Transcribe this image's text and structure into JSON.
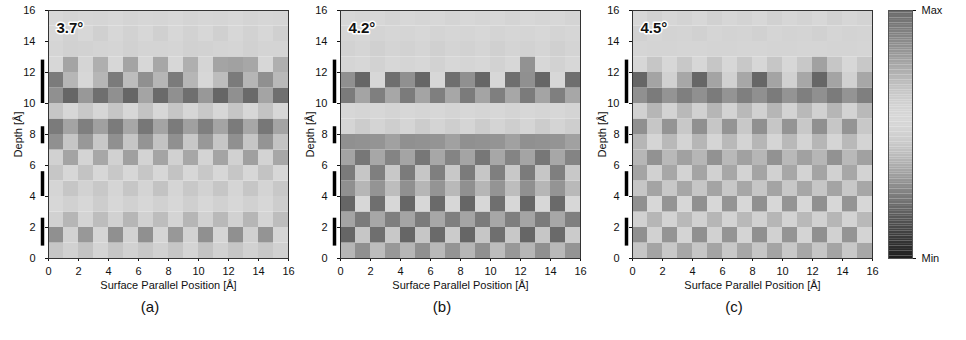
{
  "chart_data": {
    "type": "heatmap",
    "x_label": "Surface Parallel Position [Å]",
    "y_label": "Depth [Å]",
    "xlim": [
      0,
      16
    ],
    "ylim": [
      0,
      16
    ],
    "xticks": [
      0,
      2,
      4,
      6,
      8,
      10,
      12,
      14,
      16
    ],
    "yticks": [
      0,
      2,
      4,
      6,
      8,
      10,
      12,
      14,
      16
    ],
    "x_bins": [
      0,
      1,
      2,
      3,
      4,
      5,
      6,
      7,
      8,
      9,
      10,
      11,
      12,
      13,
      14,
      15,
      16
    ],
    "y_bins": [
      0,
      1,
      2,
      3,
      4,
      5,
      6,
      7,
      8,
      9,
      10,
      11,
      12,
      13,
      14,
      15,
      16
    ],
    "layer_bars": [
      [
        0.8,
        2.6
      ],
      [
        4.0,
        5.6
      ],
      [
        7.4,
        8.5
      ],
      [
        10.0,
        12.8
      ]
    ],
    "colorbar": {
      "range": [
        0,
        1
      ],
      "ticks": [
        {
          "value": 1,
          "label": "Max"
        },
        {
          "value": 0,
          "label": "Min"
        }
      ]
    },
    "panels": [
      {
        "title": "3.7°",
        "panel_label": "(a)",
        "cells": [
          [
            0.45,
            0.5,
            0.44,
            0.52,
            0.45,
            0.5,
            0.46,
            0.5,
            0.45,
            0.52,
            0.44,
            0.5,
            0.45,
            0.5,
            0.46,
            0.5
          ],
          [
            0.3,
            0.62,
            0.32,
            0.6,
            0.3,
            0.62,
            0.3,
            0.6,
            0.32,
            0.62,
            0.3,
            0.6,
            0.3,
            0.63,
            0.31,
            0.6
          ],
          [
            0.5,
            0.4,
            0.52,
            0.42,
            0.5,
            0.4,
            0.5,
            0.42,
            0.52,
            0.4,
            0.5,
            0.41,
            0.5,
            0.4,
            0.52,
            0.42
          ],
          [
            0.55,
            0.5,
            0.56,
            0.48,
            0.55,
            0.5,
            0.57,
            0.5,
            0.55,
            0.49,
            0.56,
            0.5,
            0.55,
            0.5,
            0.56,
            0.48
          ],
          [
            0.6,
            0.45,
            0.62,
            0.46,
            0.6,
            0.45,
            0.61,
            0.44,
            0.6,
            0.46,
            0.62,
            0.45,
            0.6,
            0.45,
            0.61,
            0.46
          ],
          [
            0.45,
            0.55,
            0.44,
            0.56,
            0.46,
            0.55,
            0.45,
            0.57,
            0.44,
            0.55,
            0.46,
            0.56,
            0.45,
            0.55,
            0.44,
            0.56
          ],
          [
            0.5,
            0.35,
            0.52,
            0.36,
            0.5,
            0.34,
            0.51,
            0.35,
            0.5,
            0.36,
            0.52,
            0.35,
            0.5,
            0.34,
            0.51,
            0.36
          ],
          [
            0.3,
            0.45,
            0.32,
            0.46,
            0.3,
            0.45,
            0.31,
            0.44,
            0.3,
            0.46,
            0.32,
            0.45,
            0.3,
            0.45,
            0.31,
            0.44
          ],
          [
            0.25,
            0.35,
            0.26,
            0.34,
            0.25,
            0.36,
            0.24,
            0.35,
            0.25,
            0.34,
            0.26,
            0.35,
            0.25,
            0.36,
            0.24,
            0.35
          ],
          [
            0.45,
            0.55,
            0.46,
            0.54,
            0.45,
            0.56,
            0.44,
            0.55,
            0.45,
            0.54,
            0.46,
            0.55,
            0.45,
            0.56,
            0.44,
            0.55
          ],
          [
            0.3,
            0.2,
            0.32,
            0.22,
            0.3,
            0.2,
            0.35,
            0.21,
            0.3,
            0.22,
            0.32,
            0.2,
            0.3,
            0.21,
            0.35,
            0.22
          ],
          [
            0.25,
            0.4,
            0.55,
            0.4,
            0.25,
            0.42,
            0.3,
            0.4,
            0.25,
            0.4,
            0.55,
            0.42,
            0.25,
            0.4,
            0.3,
            0.41
          ],
          [
            0.55,
            0.35,
            0.6,
            0.38,
            0.55,
            0.35,
            0.58,
            0.36,
            0.55,
            0.38,
            0.6,
            0.35,
            0.8,
            0.36,
            0.58,
            0.38
          ],
          [
            0.6,
            0.5,
            0.62,
            0.52,
            0.6,
            0.5,
            0.61,
            0.52,
            0.6,
            0.5,
            0.62,
            0.52,
            0.6,
            0.5,
            0.61,
            0.52
          ],
          [
            0.55,
            0.62,
            0.56,
            0.63,
            0.55,
            0.62,
            0.56,
            0.63,
            0.55,
            0.62,
            0.56,
            0.63,
            0.55,
            0.62,
            0.56,
            0.63
          ],
          [
            0.58,
            0.52,
            0.59,
            0.53,
            0.58,
            0.52,
            0.59,
            0.53,
            0.58,
            0.52,
            0.59,
            0.53,
            0.58,
            0.52,
            0.59,
            0.53
          ]
        ]
      },
      {
        "title": "4.2°",
        "panel_label": "(b)",
        "cells": [
          [
            0.4,
            0.3,
            0.42,
            0.32,
            0.4,
            0.3,
            0.41,
            0.31,
            0.4,
            0.3,
            0.42,
            0.32,
            0.4,
            0.3,
            0.41,
            0.31
          ],
          [
            0.2,
            0.45,
            0.22,
            0.46,
            0.2,
            0.45,
            0.21,
            0.47,
            0.2,
            0.45,
            0.22,
            0.46,
            0.2,
            0.45,
            0.21,
            0.47
          ],
          [
            0.35,
            0.25,
            0.36,
            0.26,
            0.35,
            0.25,
            0.36,
            0.26,
            0.35,
            0.25,
            0.36,
            0.26,
            0.35,
            0.25,
            0.36,
            0.26
          ],
          [
            0.2,
            0.55,
            0.22,
            0.56,
            0.2,
            0.55,
            0.21,
            0.56,
            0.2,
            0.55,
            0.22,
            0.56,
            0.2,
            0.55,
            0.21,
            0.56
          ],
          [
            0.3,
            0.4,
            0.31,
            0.42,
            0.3,
            0.4,
            0.31,
            0.41,
            0.3,
            0.4,
            0.31,
            0.42,
            0.3,
            0.4,
            0.31,
            0.41
          ],
          [
            0.25,
            0.45,
            0.26,
            0.46,
            0.25,
            0.45,
            0.26,
            0.46,
            0.25,
            0.45,
            0.26,
            0.46,
            0.25,
            0.45,
            0.26,
            0.46
          ],
          [
            0.35,
            0.95,
            0.36,
            0.9,
            0.35,
            0.95,
            0.36,
            0.9,
            0.35,
            0.95,
            0.36,
            0.9,
            0.35,
            0.95,
            0.36,
            0.9
          ],
          [
            0.3,
            0.85,
            0.31,
            0.8,
            0.3,
            0.85,
            0.31,
            0.8,
            0.3,
            0.85,
            0.31,
            0.8,
            0.3,
            0.85,
            0.31,
            0.8
          ],
          [
            0.6,
            0.65,
            0.61,
            0.64,
            0.6,
            0.65,
            0.61,
            0.64,
            0.6,
            0.65,
            0.61,
            0.64,
            0.6,
            0.65,
            0.61,
            0.64
          ],
          [
            0.55,
            0.6,
            0.56,
            0.61,
            0.55,
            0.6,
            0.56,
            0.61,
            0.55,
            0.6,
            0.56,
            0.61,
            0.55,
            0.6,
            0.56,
            0.61
          ],
          [
            0.25,
            0.35,
            0.26,
            0.36,
            0.25,
            0.35,
            0.26,
            0.36,
            0.25,
            0.35,
            0.26,
            0.36,
            0.25,
            0.35,
            0.26,
            0.36
          ],
          [
            0.3,
            0.2,
            0.55,
            0.22,
            0.3,
            0.2,
            0.55,
            0.22,
            0.3,
            0.2,
            0.55,
            0.22,
            0.3,
            0.2,
            0.55,
            0.22
          ],
          [
            0.6,
            0.55,
            0.62,
            0.56,
            0.6,
            0.55,
            0.62,
            0.56,
            0.6,
            0.55,
            0.62,
            0.56,
            0.85,
            0.55,
            0.62,
            0.56
          ],
          [
            0.62,
            0.6,
            0.63,
            0.61,
            0.62,
            0.6,
            0.63,
            0.61,
            0.62,
            0.6,
            0.63,
            0.61,
            0.62,
            0.6,
            0.63,
            0.61
          ],
          [
            0.6,
            0.58,
            0.61,
            0.59,
            0.6,
            0.58,
            0.61,
            0.59,
            0.6,
            0.58,
            0.61,
            0.59,
            0.6,
            0.58,
            0.61,
            0.59
          ],
          [
            0.56,
            0.6,
            0.57,
            0.61,
            0.56,
            0.6,
            0.57,
            0.61,
            0.56,
            0.6,
            0.57,
            0.61,
            0.56,
            0.6,
            0.57,
            0.61
          ]
        ]
      },
      {
        "title": "4.5°",
        "panel_label": "(c)",
        "cells": [
          [
            0.45,
            0.35,
            0.46,
            0.36,
            0.45,
            0.35,
            0.46,
            0.36,
            0.45,
            0.35,
            0.46,
            0.36,
            0.45,
            0.35,
            0.46,
            0.36
          ],
          [
            0.3,
            0.5,
            0.31,
            0.52,
            0.3,
            0.5,
            0.31,
            0.52,
            0.3,
            0.5,
            0.31,
            0.52,
            0.3,
            0.5,
            0.31,
            0.52
          ],
          [
            0.5,
            0.4,
            0.51,
            0.41,
            0.5,
            0.4,
            0.51,
            0.41,
            0.5,
            0.4,
            0.51,
            0.41,
            0.5,
            0.4,
            0.51,
            0.41
          ],
          [
            0.3,
            0.55,
            0.31,
            0.56,
            0.3,
            0.55,
            0.31,
            0.56,
            0.3,
            0.55,
            0.31,
            0.56,
            0.3,
            0.55,
            0.31,
            0.56
          ],
          [
            0.45,
            0.35,
            0.46,
            0.36,
            0.45,
            0.35,
            0.46,
            0.36,
            0.45,
            0.35,
            0.46,
            0.36,
            0.45,
            0.35,
            0.46,
            0.36
          ],
          [
            0.35,
            0.5,
            0.36,
            0.51,
            0.35,
            0.5,
            0.36,
            0.51,
            0.35,
            0.5,
            0.36,
            0.51,
            0.35,
            0.5,
            0.36,
            0.51
          ],
          [
            0.4,
            0.85,
            0.41,
            0.8,
            0.4,
            0.85,
            0.41,
            0.8,
            0.4,
            0.85,
            0.41,
            0.8,
            0.4,
            0.85,
            0.41,
            0.8
          ],
          [
            0.4,
            0.6,
            0.41,
            0.61,
            0.4,
            0.6,
            0.41,
            0.61,
            0.4,
            0.6,
            0.41,
            0.61,
            0.4,
            0.6,
            0.41,
            0.61
          ],
          [
            0.3,
            0.45,
            0.31,
            0.46,
            0.3,
            0.45,
            0.31,
            0.46,
            0.3,
            0.45,
            0.31,
            0.46,
            0.3,
            0.45,
            0.31,
            0.46
          ],
          [
            0.5,
            0.4,
            0.51,
            0.41,
            0.5,
            0.4,
            0.51,
            0.41,
            0.5,
            0.4,
            0.51,
            0.41,
            0.5,
            0.4,
            0.51,
            0.41
          ],
          [
            0.3,
            0.25,
            0.31,
            0.26,
            0.3,
            0.25,
            0.31,
            0.26,
            0.3,
            0.25,
            0.31,
            0.26,
            0.3,
            0.25,
            0.31,
            0.26
          ],
          [
            0.2,
            0.35,
            0.5,
            0.36,
            0.2,
            0.35,
            0.5,
            0.36,
            0.2,
            0.35,
            0.5,
            0.36,
            0.2,
            0.35,
            0.5,
            0.36
          ],
          [
            0.55,
            0.45,
            0.56,
            0.46,
            0.55,
            0.45,
            0.56,
            0.46,
            0.55,
            0.45,
            0.56,
            0.46,
            0.8,
            0.45,
            0.56,
            0.46
          ],
          [
            0.6,
            0.52,
            0.61,
            0.53,
            0.6,
            0.52,
            0.61,
            0.53,
            0.6,
            0.52,
            0.61,
            0.53,
            0.6,
            0.52,
            0.61,
            0.53
          ],
          [
            0.5,
            0.6,
            0.51,
            0.61,
            0.5,
            0.6,
            0.51,
            0.61,
            0.5,
            0.6,
            0.51,
            0.61,
            0.5,
            0.6,
            0.51,
            0.61
          ],
          [
            0.58,
            0.5,
            0.59,
            0.51,
            0.58,
            0.5,
            0.59,
            0.51,
            0.58,
            0.5,
            0.59,
            0.51,
            0.58,
            0.5,
            0.59,
            0.51
          ]
        ]
      }
    ]
  }
}
